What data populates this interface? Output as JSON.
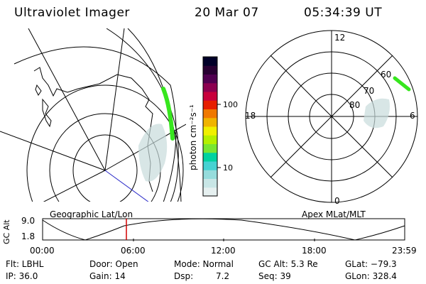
{
  "header": {
    "instrument": "Ultraviolet Imager",
    "date": "20 Mar 07",
    "time": "05:34:39 UT"
  },
  "geo_panel": {
    "label": "Geographic Lat/Lon"
  },
  "colorbar": {
    "unit_label": "photon cm⁻²s⁻¹",
    "ticks": [
      {
        "value": 100,
        "label": "100"
      },
      {
        "value": 10,
        "label": "10"
      }
    ],
    "colors": [
      "#e6f0f0",
      "#c8e6e6",
      "#96dcdc",
      "#46d2d2",
      "#00d2a0",
      "#78e632",
      "#b4f000",
      "#f0f000",
      "#f0b400",
      "#f07800",
      "#e61e00",
      "#c8003c",
      "#8c0050",
      "#500050",
      "#280032",
      "#000028"
    ]
  },
  "polar_panel": {
    "label": "Apex MLat/MLT",
    "mlt_labels": {
      "top": "12",
      "left": "18",
      "right": "6",
      "bottom": "0"
    },
    "lat_labels": [
      "60",
      "70",
      "80"
    ]
  },
  "timeline": {
    "ylabel": "GC Alt",
    "ytick_top": "9.0",
    "ytick_bottom": "1.8",
    "xticks": [
      "00:00",
      "06:00",
      "12:00",
      "18:00",
      "23:59"
    ],
    "marker_time": "05:34"
  },
  "footer": {
    "flt": "Flt: LBHL",
    "ip": "IP: 36.0",
    "door": "Door: Open",
    "gain": "Gain: 14",
    "mode": "Mode: Normal",
    "dsp_label": "Dsp:",
    "dsp_value": "7.2",
    "gcalt": "GC Alt: 5.3 Re",
    "seq": "Seq: 39",
    "glat": "GLat: −79.3",
    "glon": "GLon: 328.4"
  },
  "colors": {
    "aurora_green": "#37e61e",
    "glow": "#c8dcdc",
    "marker": "#d20000",
    "track": "#2828c8"
  }
}
